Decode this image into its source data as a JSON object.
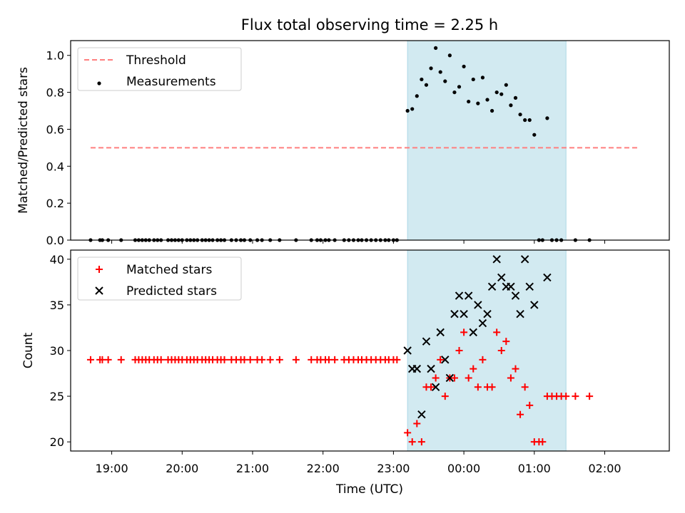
{
  "figure": {
    "title": "Flux total observing time = 2.25 h"
  },
  "chart_data": [
    {
      "type": "scatter",
      "ylabel": "Matched/Predicted stars",
      "xlim": [
        "18:25",
        "02:55"
      ],
      "ylim": [
        0,
        1.08
      ],
      "xticks": [],
      "yticks": [
        0.0,
        0.2,
        0.4,
        0.6,
        0.8,
        1.0
      ],
      "ytick_labels": [
        "0.0",
        "0.2",
        "0.4",
        "0.6",
        "0.8",
        "1.0"
      ],
      "legend_position": "upper left",
      "shaded_region": {
        "x": [
          "23:12",
          "01:27"
        ],
        "color": "#add8e6"
      },
      "series": [
        {
          "name": "Threshold",
          "kind": "line",
          "color": "#ff7f7f",
          "x": [
            "18:42",
            "02:30"
          ],
          "y": [
            0.5,
            0.5
          ]
        },
        {
          "name": "Measurements",
          "kind": "scatter",
          "color": "#000000",
          "points": [
            [
              "18:42",
              0
            ],
            [
              "18:50",
              0
            ],
            [
              "18:52",
              0
            ],
            [
              "18:57",
              0
            ],
            [
              "19:08",
              0
            ],
            [
              "19:20",
              0
            ],
            [
              "19:23",
              0
            ],
            [
              "19:26",
              0
            ],
            [
              "19:29",
              0
            ],
            [
              "19:32",
              0
            ],
            [
              "19:36",
              0
            ],
            [
              "19:39",
              0
            ],
            [
              "19:42",
              0
            ],
            [
              "19:48",
              0
            ],
            [
              "19:51",
              0
            ],
            [
              "19:54",
              0
            ],
            [
              "19:57",
              0
            ],
            [
              "20:00",
              0
            ],
            [
              "20:04",
              0
            ],
            [
              "20:07",
              0
            ],
            [
              "20:10",
              0
            ],
            [
              "20:13",
              0
            ],
            [
              "20:17",
              0
            ],
            [
              "20:20",
              0
            ],
            [
              "20:23",
              0
            ],
            [
              "20:26",
              0
            ],
            [
              "20:30",
              0
            ],
            [
              "20:33",
              0
            ],
            [
              "20:36",
              0
            ],
            [
              "20:42",
              0
            ],
            [
              "20:46",
              0
            ],
            [
              "20:50",
              0
            ],
            [
              "20:53",
              0
            ],
            [
              "20:58",
              0
            ],
            [
              "21:04",
              0
            ],
            [
              "21:08",
              0
            ],
            [
              "21:15",
              0
            ],
            [
              "21:23",
              0
            ],
            [
              "21:37",
              0
            ],
            [
              "21:50",
              0
            ],
            [
              "21:55",
              0
            ],
            [
              "21:58",
              0
            ],
            [
              "22:02",
              0
            ],
            [
              "22:05",
              0
            ],
            [
              "22:10",
              0
            ],
            [
              "22:18",
              0
            ],
            [
              "22:22",
              0
            ],
            [
              "22:26",
              0
            ],
            [
              "22:30",
              0
            ],
            [
              "22:33",
              0
            ],
            [
              "22:37",
              0
            ],
            [
              "22:41",
              0
            ],
            [
              "22:45",
              0
            ],
            [
              "22:49",
              0
            ],
            [
              "22:53",
              0
            ],
            [
              "22:56",
              0
            ],
            [
              "23:00",
              0
            ],
            [
              "23:03",
              0
            ],
            [
              "23:12",
              0.7
            ],
            [
              "23:16",
              0.71
            ],
            [
              "23:20",
              0.78
            ],
            [
              "23:24",
              0.87
            ],
            [
              "23:28",
              0.84
            ],
            [
              "23:32",
              0.93
            ],
            [
              "23:36",
              1.04
            ],
            [
              "23:40",
              0.91
            ],
            [
              "23:44",
              0.86
            ],
            [
              "23:48",
              1.0
            ],
            [
              "23:52",
              0.8
            ],
            [
              "23:56",
              0.83
            ],
            [
              "00:00",
              0.94
            ],
            [
              "00:04",
              0.75
            ],
            [
              "00:08",
              0.87
            ],
            [
              "00:12",
              0.74
            ],
            [
              "00:16",
              0.88
            ],
            [
              "00:20",
              0.76
            ],
            [
              "00:24",
              0.7
            ],
            [
              "00:28",
              0.8
            ],
            [
              "00:32",
              0.79
            ],
            [
              "00:36",
              0.84
            ],
            [
              "00:40",
              0.73
            ],
            [
              "00:44",
              0.77
            ],
            [
              "00:48",
              0.68
            ],
            [
              "00:52",
              0.65
            ],
            [
              "00:56",
              0.65
            ],
            [
              "01:00",
              0.57
            ],
            [
              "01:04",
              0
            ],
            [
              "01:07",
              0
            ],
            [
              "01:11",
              0.66
            ],
            [
              "01:15",
              0
            ],
            [
              "01:19",
              0
            ],
            [
              "01:23",
              0
            ],
            [
              "01:35",
              0
            ],
            [
              "01:47",
              0
            ]
          ]
        }
      ]
    },
    {
      "type": "scatter",
      "xlabel": "Time (UTC)",
      "ylabel": "Count",
      "xlim": [
        "18:25",
        "02:55"
      ],
      "ylim": [
        19,
        41
      ],
      "xticks": [
        "19:00",
        "20:00",
        "21:00",
        "22:00",
        "23:00",
        "00:00",
        "01:00",
        "02:00"
      ],
      "yticks": [
        20,
        25,
        30,
        35,
        40
      ],
      "ytick_labels": [
        "20",
        "25",
        "30",
        "35",
        "40"
      ],
      "legend_position": "upper left",
      "shaded_region": {
        "x": [
          "23:12",
          "01:27"
        ],
        "color": "#add8e6"
      },
      "series": [
        {
          "name": "Matched stars",
          "kind": "plus",
          "color": "#ff0000",
          "points": [
            [
              "18:42",
              29
            ],
            [
              "18:50",
              29
            ],
            [
              "18:52",
              29
            ],
            [
              "18:57",
              29
            ],
            [
              "19:08",
              29
            ],
            [
              "19:20",
              29
            ],
            [
              "19:23",
              29
            ],
            [
              "19:26",
              29
            ],
            [
              "19:29",
              29
            ],
            [
              "19:32",
              29
            ],
            [
              "19:36",
              29
            ],
            [
              "19:39",
              29
            ],
            [
              "19:42",
              29
            ],
            [
              "19:48",
              29
            ],
            [
              "19:51",
              29
            ],
            [
              "19:54",
              29
            ],
            [
              "19:57",
              29
            ],
            [
              "20:00",
              29
            ],
            [
              "20:04",
              29
            ],
            [
              "20:07",
              29
            ],
            [
              "20:10",
              29
            ],
            [
              "20:13",
              29
            ],
            [
              "20:17",
              29
            ],
            [
              "20:20",
              29
            ],
            [
              "20:23",
              29
            ],
            [
              "20:26",
              29
            ],
            [
              "20:30",
              29
            ],
            [
              "20:33",
              29
            ],
            [
              "20:36",
              29
            ],
            [
              "20:42",
              29
            ],
            [
              "20:46",
              29
            ],
            [
              "20:50",
              29
            ],
            [
              "20:53",
              29
            ],
            [
              "20:58",
              29
            ],
            [
              "21:04",
              29
            ],
            [
              "21:08",
              29
            ],
            [
              "21:15",
              29
            ],
            [
              "21:23",
              29
            ],
            [
              "21:37",
              29
            ],
            [
              "21:50",
              29
            ],
            [
              "21:55",
              29
            ],
            [
              "21:58",
              29
            ],
            [
              "22:02",
              29
            ],
            [
              "22:05",
              29
            ],
            [
              "22:10",
              29
            ],
            [
              "22:18",
              29
            ],
            [
              "22:22",
              29
            ],
            [
              "22:26",
              29
            ],
            [
              "22:30",
              29
            ],
            [
              "22:33",
              29
            ],
            [
              "22:37",
              29
            ],
            [
              "22:41",
              29
            ],
            [
              "22:45",
              29
            ],
            [
              "22:49",
              29
            ],
            [
              "22:53",
              29
            ],
            [
              "22:56",
              29
            ],
            [
              "23:00",
              29
            ],
            [
              "23:03",
              29
            ],
            [
              "23:12",
              21
            ],
            [
              "23:16",
              20
            ],
            [
              "23:20",
              22
            ],
            [
              "23:24",
              20
            ],
            [
              "23:28",
              26
            ],
            [
              "23:32",
              26
            ],
            [
              "23:36",
              27
            ],
            [
              "23:40",
              29
            ],
            [
              "23:44",
              25
            ],
            [
              "23:48",
              27
            ],
            [
              "23:52",
              27
            ],
            [
              "23:56",
              30
            ],
            [
              "00:00",
              32
            ],
            [
              "00:04",
              27
            ],
            [
              "00:08",
              28
            ],
            [
              "00:12",
              26
            ],
            [
              "00:16",
              29
            ],
            [
              "00:20",
              26
            ],
            [
              "00:24",
              26
            ],
            [
              "00:28",
              32
            ],
            [
              "00:32",
              30
            ],
            [
              "00:36",
              31
            ],
            [
              "00:40",
              27
            ],
            [
              "00:44",
              28
            ],
            [
              "00:48",
              23
            ],
            [
              "00:52",
              26
            ],
            [
              "00:56",
              24
            ],
            [
              "01:00",
              20
            ],
            [
              "01:04",
              20
            ],
            [
              "01:07",
              20
            ],
            [
              "01:11",
              25
            ],
            [
              "01:15",
              25
            ],
            [
              "01:19",
              25
            ],
            [
              "01:23",
              25
            ],
            [
              "01:27",
              25
            ],
            [
              "01:35",
              25
            ],
            [
              "01:47",
              25
            ]
          ]
        },
        {
          "name": "Predicted stars",
          "kind": "x",
          "color": "#000000",
          "points": [
            [
              "23:12",
              30
            ],
            [
              "23:16",
              28
            ],
            [
              "23:20",
              28
            ],
            [
              "23:24",
              23
            ],
            [
              "23:28",
              31
            ],
            [
              "23:32",
              28
            ],
            [
              "23:36",
              26
            ],
            [
              "23:40",
              32
            ],
            [
              "23:44",
              29
            ],
            [
              "23:48",
              27
            ],
            [
              "23:52",
              34
            ],
            [
              "23:56",
              36
            ],
            [
              "00:00",
              34
            ],
            [
              "00:04",
              36
            ],
            [
              "00:08",
              32
            ],
            [
              "00:12",
              35
            ],
            [
              "00:16",
              33
            ],
            [
              "00:20",
              34
            ],
            [
              "00:24",
              37
            ],
            [
              "00:28",
              40
            ],
            [
              "00:32",
              38
            ],
            [
              "00:36",
              37
            ],
            [
              "00:40",
              37
            ],
            [
              "00:44",
              36
            ],
            [
              "00:48",
              34
            ],
            [
              "00:52",
              40
            ],
            [
              "00:56",
              37
            ],
            [
              "01:00",
              35
            ],
            [
              "01:11",
              38
            ]
          ]
        }
      ]
    }
  ]
}
